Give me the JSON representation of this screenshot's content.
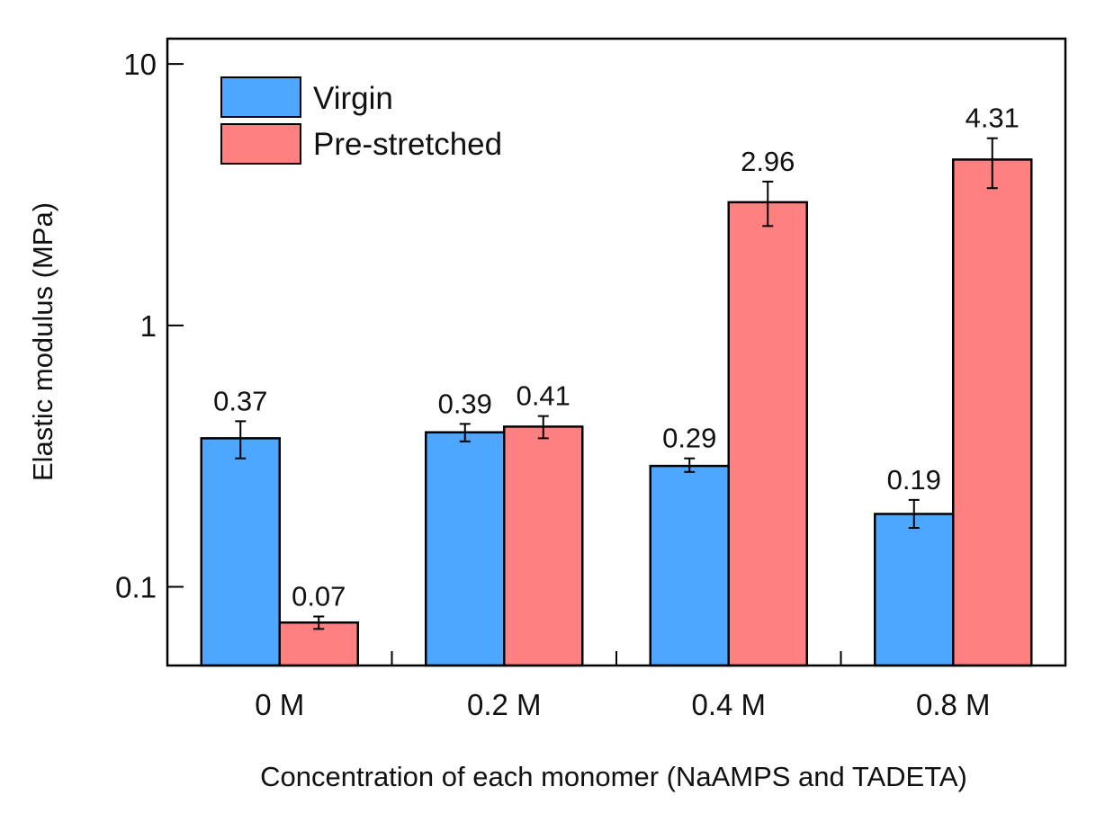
{
  "chart_data": {
    "type": "bar",
    "title": "",
    "xlabel": "Concentration of each monomer (NaAMPS and TADETA)",
    "ylabel": "Elastic modulus (MPa)",
    "yscale": "log",
    "ylim": [
      0.05,
      12.5
    ],
    "yticks": [
      0.1,
      1,
      10
    ],
    "ytick_labels": [
      "0.1",
      "1",
      "10"
    ],
    "categories": [
      "0 M",
      "0.2 M",
      "0.4 M",
      "0.8 M"
    ],
    "series": [
      {
        "name": "Virgin",
        "color": "#4da6ff",
        "values": [
          0.37,
          0.39,
          0.29,
          0.19
        ],
        "labels": [
          "0.37",
          "0.39",
          "0.29",
          "0.19"
        ],
        "err_low": [
          0.31,
          0.36,
          0.275,
          0.168
        ],
        "err_high": [
          0.43,
          0.42,
          0.31,
          0.215
        ]
      },
      {
        "name": "Pre-stretched",
        "color": "#ff8080",
        "values": [
          0.073,
          0.41,
          2.96,
          4.31
        ],
        "labels": [
          "0.07",
          "0.41",
          "2.96",
          "4.31"
        ],
        "err_low": [
          0.069,
          0.37,
          2.4,
          3.35
        ],
        "err_high": [
          0.077,
          0.45,
          3.55,
          5.2
        ]
      }
    ],
    "legend_position": "top-left",
    "grid": false
  }
}
